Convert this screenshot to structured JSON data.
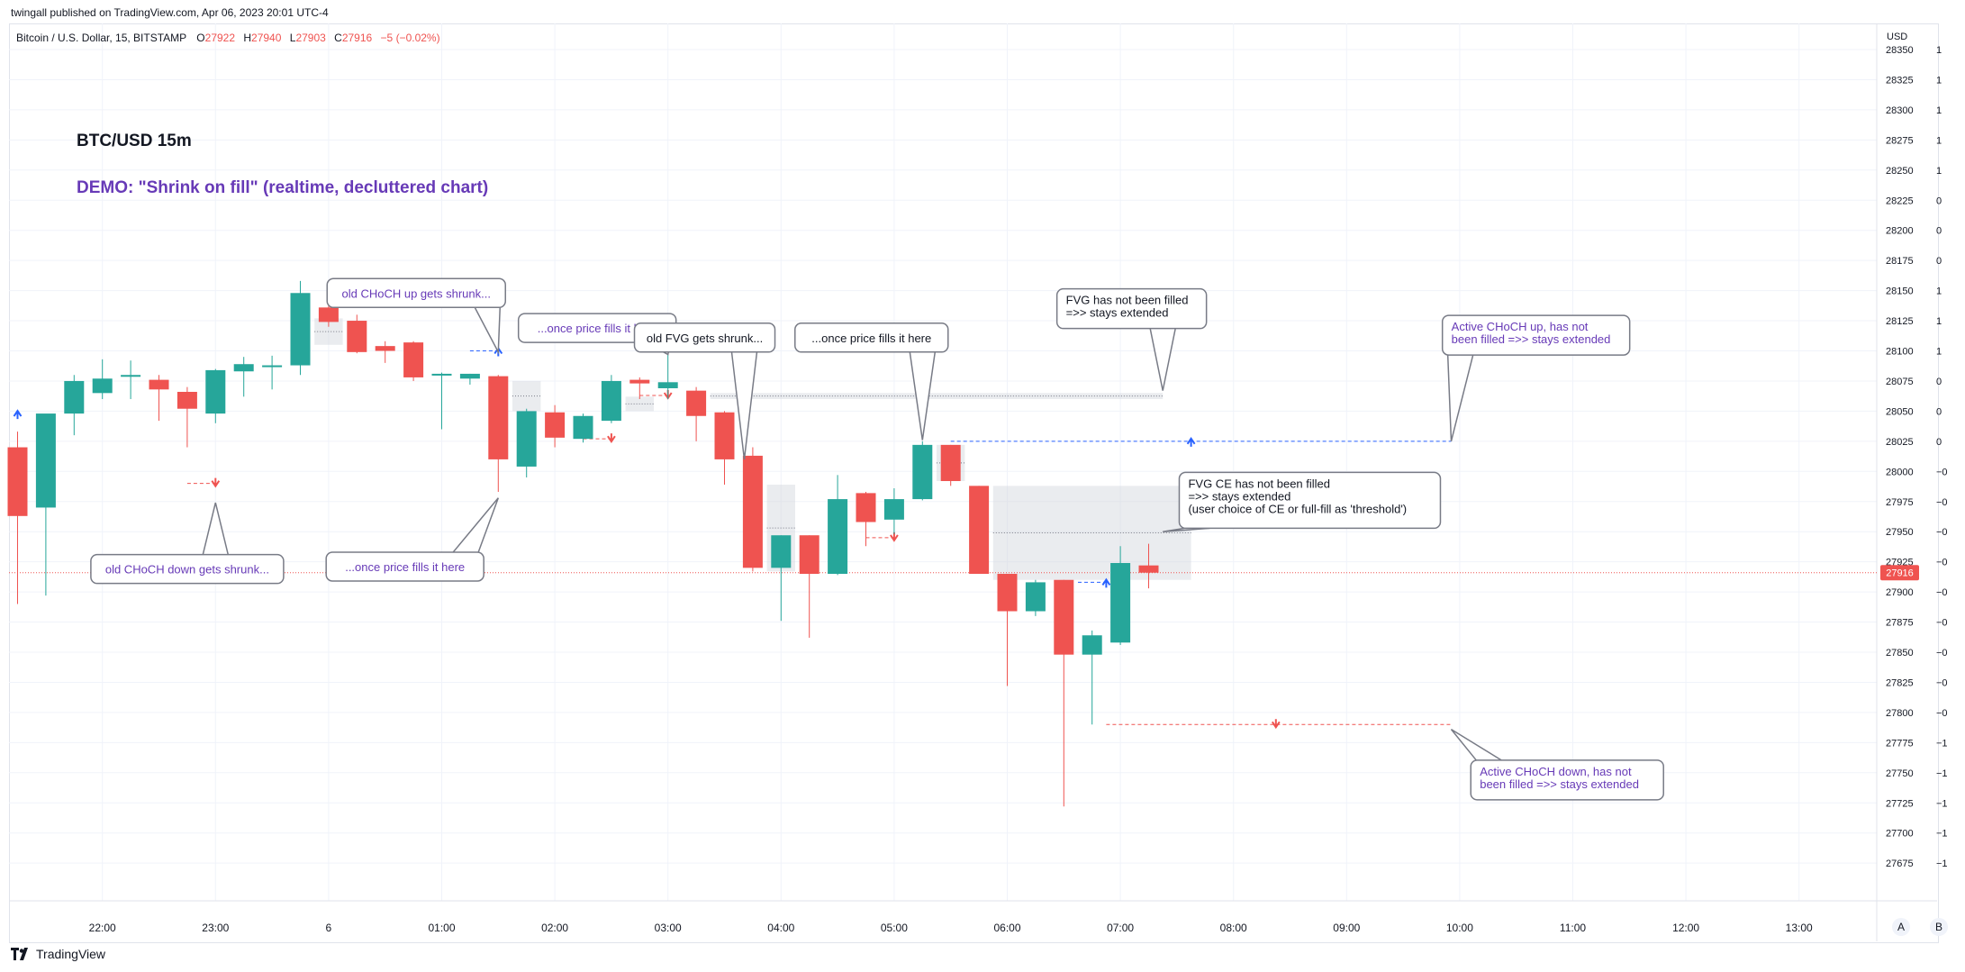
{
  "publisher_line": "twingall published on TradingView.com, Apr 06, 2023 20:01 UTC-4",
  "footer_brand": "TradingView",
  "legend": {
    "symbol": "Bitcoin / U.S. Dollar, 15, BITSTAMP",
    "o_label": "O",
    "o_value": "27922",
    "h_label": "H",
    "h_value": "27940",
    "l_label": "L",
    "l_value": "27903",
    "c_label": "C",
    "c_value": "27916",
    "change": "−5 (−0.02%)"
  },
  "scale_buttons": {
    "a": "A",
    "b": "B"
  },
  "colors": {
    "up": "#26a69a",
    "down": "#ef5350",
    "purple": "#673ab7",
    "blue": "#2962ff",
    "grid": "#f0f3fa",
    "text": "#131722",
    "axis_text": "#131722",
    "box_border": "#787b86",
    "fvg_fill": "#d1d4dc"
  },
  "chart_data": {
    "type": "candlestick",
    "title": "BTC/USD 15m",
    "subtitle": "DEMO: \"Shrink on fill\" (realtime, decluttered chart)",
    "currency_label": "USD",
    "ylim": [
      27665,
      28355
    ],
    "y_ticks": [
      "28350",
      "28325",
      "28300",
      "28275",
      "28250",
      "28225",
      "28200",
      "28175",
      "28150",
      "28125",
      "28100",
      "28075",
      "28050",
      "28025",
      "28000",
      "27975",
      "27950",
      "27925",
      "27900",
      "27875",
      "27850",
      "27825",
      "27800",
      "27775",
      "27750",
      "27725",
      "27700",
      "27675"
    ],
    "right_column": [
      "1",
      "1",
      "1",
      "1",
      "1",
      "0",
      "0",
      "0",
      "1",
      "1",
      "1",
      "0",
      "0",
      "0",
      "−0",
      "−0",
      "−0",
      "−0",
      "−0",
      "−0",
      "−0",
      "−0",
      "−0",
      "−1",
      "−1",
      "−1",
      "−1",
      "−1"
    ],
    "x_ticks": [
      {
        "label": "22:00",
        "bar": 3.0
      },
      {
        "label": "23:00",
        "bar": 7.0
      },
      {
        "label": "6",
        "bar": 11.0
      },
      {
        "label": "01:00",
        "bar": 15.0
      },
      {
        "label": "02:00",
        "bar": 19.0
      },
      {
        "label": "03:00",
        "bar": 23.0
      },
      {
        "label": "04:00",
        "bar": 27.0
      },
      {
        "label": "05:00",
        "bar": 31.0
      },
      {
        "label": "06:00",
        "bar": 35.0
      },
      {
        "label": "07:00",
        "bar": 39.0
      },
      {
        "label": "08:00",
        "bar": 43.0
      },
      {
        "label": "09:00",
        "bar": 47.0
      },
      {
        "label": "10:00",
        "bar": 51.0
      },
      {
        "label": "11:00",
        "bar": 55.0
      },
      {
        "label": "12:00",
        "bar": 59.0
      },
      {
        "label": "13:00",
        "bar": 63.0
      }
    ],
    "candles": [
      {
        "o": 28020,
        "h": 28033,
        "l": 27890,
        "c": 27963
      },
      {
        "o": 27970,
        "h": 28045,
        "l": 27897,
        "c": 28048
      },
      {
        "o": 28048,
        "h": 28080,
        "l": 28030,
        "c": 28075
      },
      {
        "o": 28065,
        "h": 28093,
        "l": 28060,
        "c": 28077
      },
      {
        "o": 28079,
        "h": 28092,
        "l": 28060,
        "c": 28080
      },
      {
        "o": 28076,
        "h": 28080,
        "l": 28042,
        "c": 28068
      },
      {
        "o": 28066,
        "h": 28070,
        "l": 28020,
        "c": 28052
      },
      {
        "o": 28048,
        "h": 28085,
        "l": 28040,
        "c": 28084
      },
      {
        "o": 28083,
        "h": 28095,
        "l": 28062,
        "c": 28089
      },
      {
        "o": 28087,
        "h": 28096,
        "l": 28068,
        "c": 28088
      },
      {
        "o": 28088,
        "h": 28158,
        "l": 28080,
        "c": 28148
      },
      {
        "o": 28136,
        "h": 28138,
        "l": 28120,
        "c": 28124
      },
      {
        "o": 28125,
        "h": 28130,
        "l": 28098,
        "c": 28099
      },
      {
        "o": 28104,
        "h": 28108,
        "l": 28090,
        "c": 28100
      },
      {
        "o": 28107,
        "h": 28108,
        "l": 28075,
        "c": 28078
      },
      {
        "o": 28081,
        "h": 28082,
        "l": 28035,
        "c": 28081
      },
      {
        "o": 28077,
        "h": 28081,
        "l": 28072,
        "c": 28081
      },
      {
        "o": 28079,
        "h": 28080,
        "l": 27983,
        "c": 28010
      },
      {
        "o": 28004,
        "h": 28052,
        "l": 27995,
        "c": 28050
      },
      {
        "o": 28049,
        "h": 28055,
        "l": 28020,
        "c": 28028
      },
      {
        "o": 28027,
        "h": 28048,
        "l": 28024,
        "c": 28046
      },
      {
        "o": 28042,
        "h": 28080,
        "l": 28040,
        "c": 28075
      },
      {
        "o": 28076,
        "h": 28078,
        "l": 28060,
        "c": 28073
      },
      {
        "o": 28069,
        "h": 28102,
        "l": 28060,
        "c": 28074
      },
      {
        "o": 28067,
        "h": 28070,
        "l": 28025,
        "c": 28046
      },
      {
        "o": 28049,
        "h": 28050,
        "l": 27989,
        "c": 28010
      },
      {
        "o": 28013,
        "h": 28020,
        "l": 27917,
        "c": 27920
      },
      {
        "o": 27920,
        "h": 27947,
        "l": 27876,
        "c": 27947
      },
      {
        "o": 27947,
        "h": 27947,
        "l": 27862,
        "c": 27915
      },
      {
        "o": 27915,
        "h": 27997,
        "l": 27914,
        "c": 27977
      },
      {
        "o": 27982,
        "h": 27983,
        "l": 27938,
        "c": 27958
      },
      {
        "o": 27960,
        "h": 27986,
        "l": 27948,
        "c": 27977
      },
      {
        "o": 27977,
        "h": 28025,
        "l": 27976,
        "c": 28022
      },
      {
        "o": 28022,
        "h": 28022,
        "l": 27988,
        "c": 27992
      },
      {
        "o": 27988,
        "h": 27988,
        "l": 27915,
        "c": 27915
      },
      {
        "o": 27915,
        "h": 27915,
        "l": 27822,
        "c": 27884
      },
      {
        "o": 27884,
        "h": 27910,
        "l": 27880,
        "c": 27908
      },
      {
        "o": 27910,
        "h": 27910,
        "l": 27722,
        "c": 27848
      },
      {
        "o": 27848,
        "h": 27868,
        "l": 27790,
        "c": 27864
      },
      {
        "o": 27858,
        "h": 27938,
        "l": 27856,
        "c": 27924
      },
      {
        "o": 27922,
        "h": 27940,
        "l": 27903,
        "c": 27916
      }
    ],
    "current_price": {
      "value": 27916,
      "label": "27916"
    },
    "fvg_boxes": [
      {
        "from": 10.5,
        "to": 11.5,
        "top": 28127,
        "bottom": 28105
      },
      {
        "from": 17.5,
        "to": 18.5,
        "top": 28075,
        "bottom": 28050
      },
      {
        "from": 21.5,
        "to": 22.5,
        "top": 28062,
        "bottom": 28050
      },
      {
        "from": 26.5,
        "to": 27.5,
        "top": 27989,
        "bottom": 27917
      },
      {
        "from": 32.5,
        "to": 33.5,
        "top": 28022,
        "bottom": 27992
      },
      {
        "from": 34.5,
        "to": 41.5,
        "top": 27988,
        "bottom": 27910
      },
      {
        "from": 24.5,
        "to": 40.5,
        "top": 28065,
        "bottom": 28060
      }
    ],
    "levels": [
      {
        "kind": "choch_up",
        "from": 0,
        "to": 0,
        "price": 28048,
        "color": "blue"
      },
      {
        "kind": "choch_down",
        "from": 6,
        "to": 7,
        "price": 27990,
        "color": "red"
      },
      {
        "kind": "choch_up",
        "from": 16,
        "to": 17,
        "price": 28100,
        "color": "blue"
      },
      {
        "kind": "choch_down",
        "from": 20,
        "to": 21,
        "price": 28027,
        "color": "red"
      },
      {
        "kind": "choch_down",
        "from": 22,
        "to": 23,
        "price": 28063,
        "color": "red"
      },
      {
        "kind": "choch_down",
        "from": 30,
        "to": 31,
        "price": 27945,
        "color": "red"
      },
      {
        "kind": "choch_up",
        "from": 33,
        "to": 50.7,
        "price": 28025,
        "color": "blue",
        "arrow_at": 41.5
      },
      {
        "kind": "choch_up",
        "from": 37.5,
        "to": 38.5,
        "price": 27908,
        "color": "blue"
      },
      {
        "kind": "choch_down",
        "from": 38.5,
        "to": 50.7,
        "price": 27790,
        "color": "red",
        "arrow_at": 44.5
      }
    ],
    "callouts": [
      {
        "text": "old CHoCH up gets shrunk...",
        "color": "purple",
        "bar": 14.1,
        "price": 28148,
        "box_w": 198,
        "box_h": 32,
        "tip_bar": 17,
        "tip_price": 28099
      },
      {
        "text": "...once price fills it here",
        "color": "purple",
        "bar": 20.5,
        "price": 28119,
        "box_w": 175,
        "box_h": 32,
        "tip_bar": 23,
        "tip_price": 28097
      },
      {
        "text": "old FVG gets shrunk...",
        "color": "dark",
        "bar": 24.3,
        "price": 28111,
        "box_w": 156,
        "box_h": 32,
        "tip_bar": 25.7,
        "tip_price": 28010
      },
      {
        "text": "...once price fills it here",
        "color": "dark",
        "bar": 30.2,
        "price": 28111,
        "box_w": 170,
        "box_h": 32,
        "tip_bar": 32,
        "tip_price": 28026
      },
      {
        "text": "old CHoCH down gets shrunk...",
        "color": "purple",
        "bar": 6,
        "price": 27919,
        "box_w": 214,
        "box_h": 32,
        "tip_bar": 7,
        "tip_price": 27974
      },
      {
        "text": "...once price fills it here",
        "color": "purple",
        "bar": 13.7,
        "price": 27921,
        "box_w": 175,
        "box_h": 32,
        "tip_bar": 17,
        "tip_price": 27978
      }
    ],
    "info_boxes": [
      {
        "lines": [
          "FVG has not been filled",
          "=>> stays extended"
        ],
        "color": "dark",
        "bar": 39.4,
        "price": 28135,
        "box_w": 166,
        "box_h": 44,
        "tip_bar": 40.5,
        "tip_price": 28067
      },
      {
        "lines": [
          "Active CHoCH up, has not",
          "been filled =>> stays extended"
        ],
        "color": "purple",
        "bar": 53.7,
        "price": 28113,
        "box_w": 208,
        "box_h": 44,
        "tip_bar": 50.7,
        "tip_price": 28025
      },
      {
        "lines": [
          "FVG CE has not been filled",
          "=>> stays extended",
          "(user choice of CE or full-fill as 'threshold')"
        ],
        "color": "dark",
        "bar": 45.7,
        "price": 27976,
        "box_w": 290,
        "box_h": 62,
        "tip_bar": 40.5,
        "tip_price": 27950
      },
      {
        "lines": [
          "Active CHoCH down, has not",
          "been filled =>> stays extended"
        ],
        "color": "purple",
        "bar": 54.8,
        "price": 27744,
        "box_w": 214,
        "box_h": 44,
        "tip_bar": 50.7,
        "tip_price": 27786
      }
    ]
  }
}
